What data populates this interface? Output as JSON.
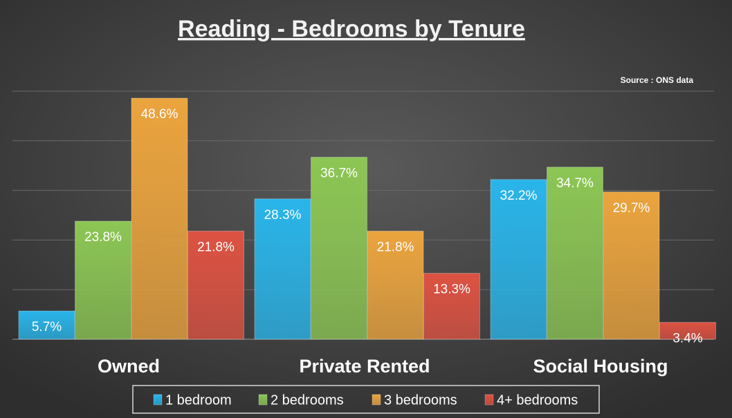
{
  "chart_data": {
    "type": "bar",
    "title": "Reading - Bedrooms by Tenure",
    "annotation": "Source : ONS data",
    "categories": [
      "Owned",
      "Private Rented",
      "Social Housing"
    ],
    "series": [
      {
        "name": "1 bedroom",
        "color": "#29b5ea",
        "values": [
          5.7,
          28.3,
          32.2
        ],
        "value_labels": [
          "5.7%",
          "28.3%",
          "32.2%"
        ]
      },
      {
        "name": "2 bedrooms",
        "color": "#8cc654",
        "values": [
          23.8,
          36.7,
          34.7
        ],
        "value_labels": [
          "23.8%",
          "36.7%",
          "34.7%"
        ]
      },
      {
        "name": "3 bedrooms",
        "color": "#eba43e",
        "values": [
          48.6,
          21.8,
          29.7
        ],
        "value_labels": [
          "48.6%",
          "21.8%",
          "29.7%"
        ]
      },
      {
        "name": "4+ bedrooms",
        "color": "#dd5242",
        "values": [
          21.8,
          13.3,
          3.4
        ],
        "value_labels": [
          "21.8%",
          "13.3%",
          "3.4%"
        ]
      }
    ],
    "ylim": [
      0,
      50
    ],
    "yticks": [
      0,
      10,
      20,
      30,
      40,
      50
    ],
    "grid": true,
    "legend": "bottom"
  }
}
